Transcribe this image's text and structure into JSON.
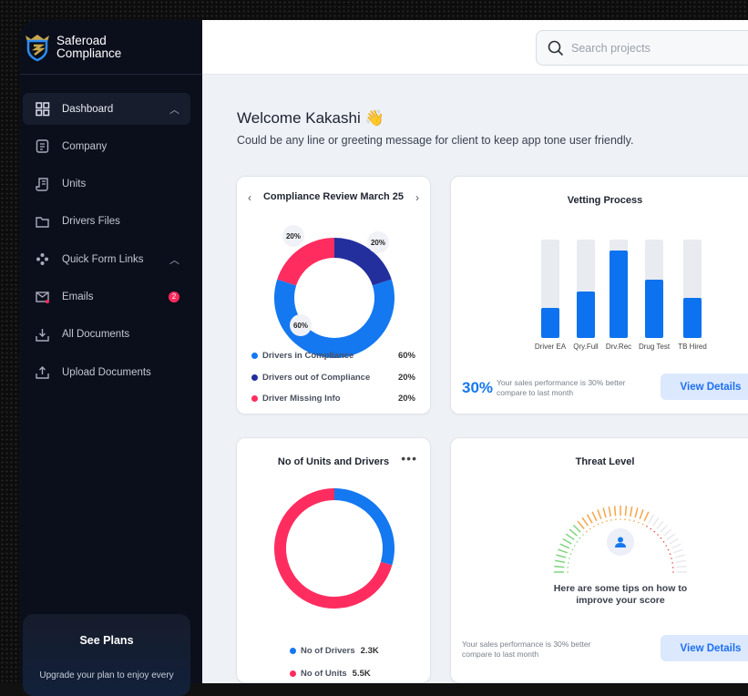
{
  "brand": {
    "name_line1": "Saferoad",
    "name_line2": "Compliance"
  },
  "sidebar": {
    "items": [
      {
        "label": "Dashboard",
        "icon": "grid-icon",
        "active": true,
        "chevron": "up"
      },
      {
        "label": "Company",
        "icon": "document-icon"
      },
      {
        "label": "Units",
        "icon": "receipt-icon"
      },
      {
        "label": "Drivers Files",
        "icon": "folder-icon"
      },
      {
        "label": "Quick Form Links",
        "icon": "diamond-dots-icon",
        "chevron": "up"
      },
      {
        "label": "Emails",
        "icon": "mail-icon",
        "badge": "2"
      },
      {
        "label": "All Documents",
        "icon": "download-icon"
      },
      {
        "label": "Upload Documents",
        "icon": "upload-icon"
      }
    ],
    "plans": {
      "title": "See Plans",
      "text": "Upgrade your plan to enjoy every"
    }
  },
  "header": {
    "search_placeholder": "Search projects"
  },
  "welcome": {
    "title": "Welcome Kakashi 👋",
    "subtitle": "Could be any line or greeting message for client to keep app tone user friendly."
  },
  "compliance": {
    "title": "Compliance Review March 25",
    "labels": [
      "20%",
      "20%",
      "60%"
    ],
    "legend": [
      {
        "label": "Drivers in Compliance",
        "value": "60%",
        "color": "#1478f0"
      },
      {
        "label": "Drivers out of Compliance",
        "value": "20%",
        "color": "#232f9c"
      },
      {
        "label": "Driver Missing Info",
        "value": "20%",
        "color": "#ff2d5f"
      }
    ]
  },
  "vetting": {
    "title": "Vetting Process",
    "percent": "30%",
    "note": "Your sales performance is 30% better compare to last month",
    "button": "View Details",
    "chart_data": {
      "type": "bar",
      "categories": [
        "Driver EA",
        "Qry.Full",
        "Drv.Rec",
        "Drug Test",
        "TB Hired"
      ],
      "values": [
        31,
        47,
        89,
        59,
        41
      ],
      "ylim": [
        0,
        100
      ]
    }
  },
  "units": {
    "title": "No of Units and Drivers",
    "legend": [
      {
        "label": "No of Drivers",
        "value": "2.3K",
        "color": "#1478f0"
      },
      {
        "label": "No of Units",
        "value": "5.5K",
        "color": "#ff2d5f"
      }
    ]
  },
  "threat": {
    "title": "Threat Level",
    "tips": "Here are some tips on how to improve your score",
    "note": "Your sales performance is 30% better compare to last month",
    "button": "View Details"
  }
}
